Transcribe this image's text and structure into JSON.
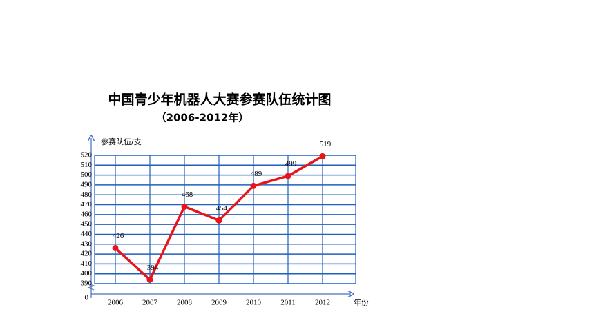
{
  "chart_data": {
    "type": "line",
    "title": "中国青少年机器人大赛参赛队伍统计图",
    "subtitle": "（2006-2012年）",
    "y_label": "参赛队伍/支",
    "x_label": "年份",
    "categories": [
      "2006",
      "2007",
      "2008",
      "2009",
      "2010",
      "2011",
      "2012"
    ],
    "values": [
      426,
      394,
      468,
      454,
      489,
      499,
      519
    ],
    "color": "#e8141c",
    "grid_color": "#1f5fbf",
    "ylim": [
      390,
      520
    ],
    "yticks": [
      390,
      400,
      410,
      420,
      430,
      440,
      450,
      460,
      470,
      480,
      490,
      500,
      510,
      520
    ],
    "axis_origin": 0,
    "grid": true
  }
}
